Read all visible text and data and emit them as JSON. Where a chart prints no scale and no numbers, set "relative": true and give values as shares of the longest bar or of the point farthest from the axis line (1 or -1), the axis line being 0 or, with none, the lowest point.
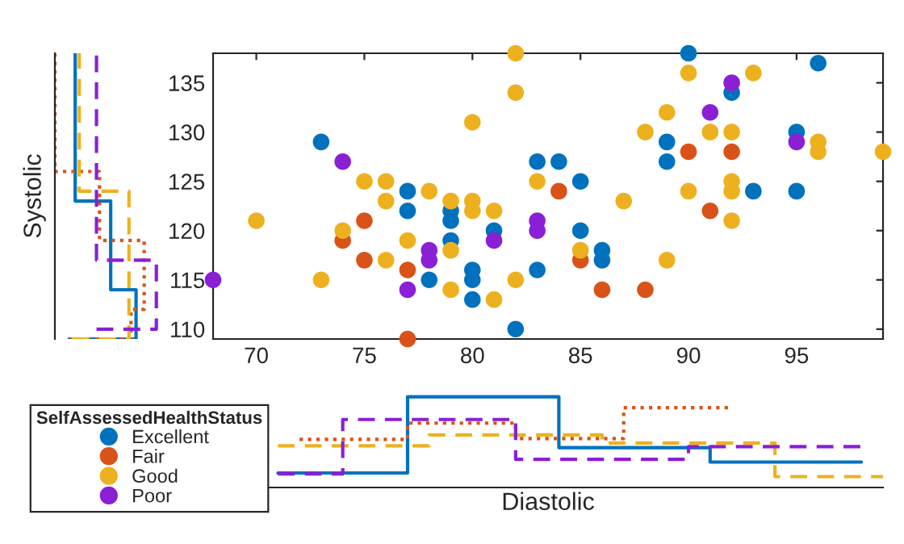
{
  "chart_data": [
    {
      "type": "scatter",
      "legend_title": "SelfAssessedHealthStatus",
      "legend": "bottom left",
      "marker": "circle",
      "grid": false,
      "xlim": [
        68,
        99
      ],
      "xticks": [
        70,
        75,
        80,
        85,
        90,
        95
      ],
      "ylim": [
        109,
        138
      ],
      "yticks": [
        110,
        115,
        120,
        125,
        130,
        135
      ],
      "series": [
        {
          "name": "Excellent",
          "color": "#0072bd",
          "x": [
            73,
            77,
            77,
            78,
            79,
            79,
            79,
            80,
            80,
            80,
            81,
            82,
            83,
            83,
            84,
            85,
            85,
            86,
            86,
            89,
            89,
            90,
            92,
            93,
            95,
            95,
            96
          ],
          "values": [
            129,
            124,
            122,
            115,
            122,
            121,
            119,
            116,
            115,
            113,
            120,
            110,
            127,
            116,
            127,
            125,
            120,
            118,
            117,
            129,
            127,
            138,
            134,
            124,
            130,
            124,
            137
          ]
        },
        {
          "name": "Fair",
          "color": "#d95319",
          "x": [
            74,
            75,
            75,
            77,
            77,
            84,
            85,
            86,
            88,
            90,
            91,
            92
          ],
          "values": [
            119,
            121,
            117,
            116,
            109,
            124,
            117,
            114,
            114,
            128,
            122,
            128
          ]
        },
        {
          "name": "Good",
          "color": "#edb120",
          "x": [
            70,
            74,
            73,
            75,
            76,
            76,
            76,
            77,
            78,
            79,
            79,
            79,
            80,
            80,
            80,
            81,
            81,
            82,
            82,
            82,
            83,
            85,
            87,
            88,
            89,
            89,
            90,
            90,
            91,
            92,
            92,
            92,
            92,
            93,
            96,
            96,
            99
          ],
          "values": [
            121,
            120,
            115,
            125,
            125,
            123,
            117,
            119,
            124,
            123,
            118,
            114,
            131,
            123,
            122,
            122,
            113,
            138,
            134,
            115,
            125,
            118,
            123,
            130,
            132,
            117,
            136,
            124,
            130,
            130,
            125,
            124,
            121,
            136,
            129,
            128,
            128
          ]
        },
        {
          "name": "Poor",
          "color": "#8a1fd6",
          "x": [
            68,
            74,
            77,
            78,
            78,
            81,
            83,
            83,
            91,
            92,
            95
          ],
          "values": [
            115,
            127,
            114,
            118,
            117,
            119,
            121,
            120,
            132,
            135,
            129
          ]
        }
      ]
    },
    {
      "type": "step",
      "orientation": "horizontal",
      "relative": true,
      "ylabel": "Systolic",
      "ylim": [
        109,
        138
      ],
      "tick_labels": false,
      "series": [
        {
          "color": "#0072bd",
          "line_style": "solid",
          "x": [
            109,
            114,
            123,
            132,
            138
          ],
          "values": [
            0.14,
            0.8,
            0.55,
            0.2,
            0.2
          ]
        },
        {
          "color": "#d95319",
          "line_style": "dotted",
          "x": [
            109,
            112,
            119,
            126,
            133,
            138
          ],
          "values": [
            0.15,
            0.75,
            0.88,
            0.44,
            0.0,
            0.0
          ]
        },
        {
          "color": "#edb120",
          "line_style": "dashed",
          "x": [
            109,
            116,
            124,
            132,
            138
          ],
          "values": [
            0.17,
            0.73,
            0.73,
            0.24,
            0.24
          ]
        },
        {
          "color": "#8a1fd6",
          "line_style": "dashed",
          "x": [
            110,
            117,
            124,
            131,
            138
          ],
          "values": [
            0.41,
            1.0,
            0.41,
            0.41,
            0.41
          ]
        }
      ]
    },
    {
      "type": "step",
      "relative": true,
      "xlabel": "Diastolic",
      "xlim": [
        68,
        99
      ],
      "tick_labels": false,
      "series": [
        {
          "color": "#0072bd",
          "line_style": "solid",
          "x": [
            71,
            77,
            84,
            91,
            98
          ],
          "values": [
            0.16,
            1.0,
            0.44,
            0.28,
            0.28
          ]
        },
        {
          "color": "#d95319",
          "line_style": "dotted",
          "x": [
            72,
            77,
            82,
            87,
            92
          ],
          "values": [
            0.53,
            0.71,
            0.54,
            0.88,
            0.88
          ]
        },
        {
          "color": "#edb120",
          "line_style": "dashed",
          "x": [
            71,
            78,
            86,
            94,
            99
          ],
          "values": [
            0.46,
            0.58,
            0.49,
            0.12,
            0.12
          ]
        },
        {
          "color": "#8a1fd6",
          "line_style": "dashed",
          "x": [
            71,
            74,
            82,
            90,
            98
          ],
          "values": [
            0.15,
            0.75,
            0.31,
            0.45,
            0.45
          ]
        }
      ]
    }
  ]
}
